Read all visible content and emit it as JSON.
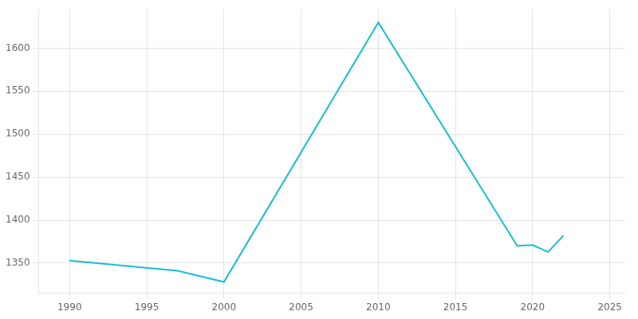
{
  "chart_data": {
    "type": "line",
    "x": [
      1990,
      1997,
      2000,
      2010,
      2019,
      2020,
      2021,
      2022
    ],
    "values": [
      1353,
      1341,
      1328,
      1630,
      1370,
      1371,
      1363,
      1382
    ],
    "color": "#17becf",
    "xlim": [
      1988,
      2026
    ],
    "xticks": [
      1990,
      1995,
      2000,
      2005,
      2010,
      2015,
      2020,
      2025
    ],
    "ylim": [
      1315,
      1645
    ],
    "yticks": [
      1350,
      1400,
      1450,
      1500,
      1550,
      1600
    ],
    "grid": true
  }
}
